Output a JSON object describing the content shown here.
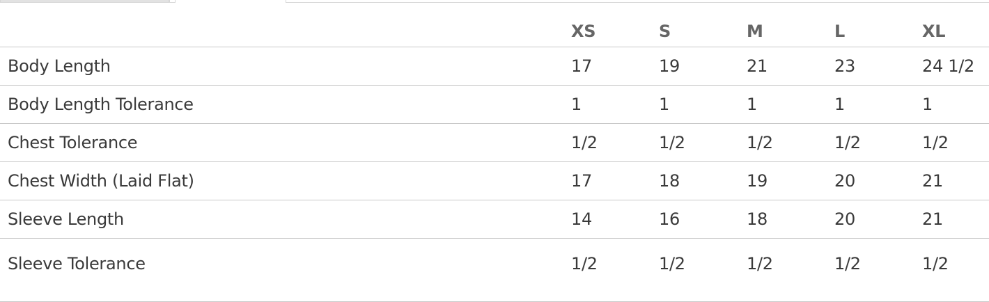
{
  "size_chart": {
    "columns": [
      "XS",
      "S",
      "M",
      "L",
      "XL"
    ],
    "rows": [
      {
        "label": "Body Length",
        "values": [
          "17",
          "19",
          "21",
          "23",
          "24 1/2"
        ]
      },
      {
        "label": "Body Length Tolerance",
        "values": [
          "1",
          "1",
          "1",
          "1",
          "1"
        ]
      },
      {
        "label": "Chest Tolerance",
        "values": [
          "1/2",
          "1/2",
          "1/2",
          "1/2",
          "1/2"
        ]
      },
      {
        "label": "Chest Width (Laid Flat)",
        "values": [
          "17",
          "18",
          "19",
          "20",
          "21"
        ]
      },
      {
        "label": "Sleeve Length",
        "values": [
          "14",
          "16",
          "18",
          "20",
          "21"
        ]
      },
      {
        "label": "Sleeve Tolerance",
        "values": [
          "1/2",
          "1/2",
          "1/2",
          "1/2",
          "1/2"
        ]
      }
    ]
  }
}
